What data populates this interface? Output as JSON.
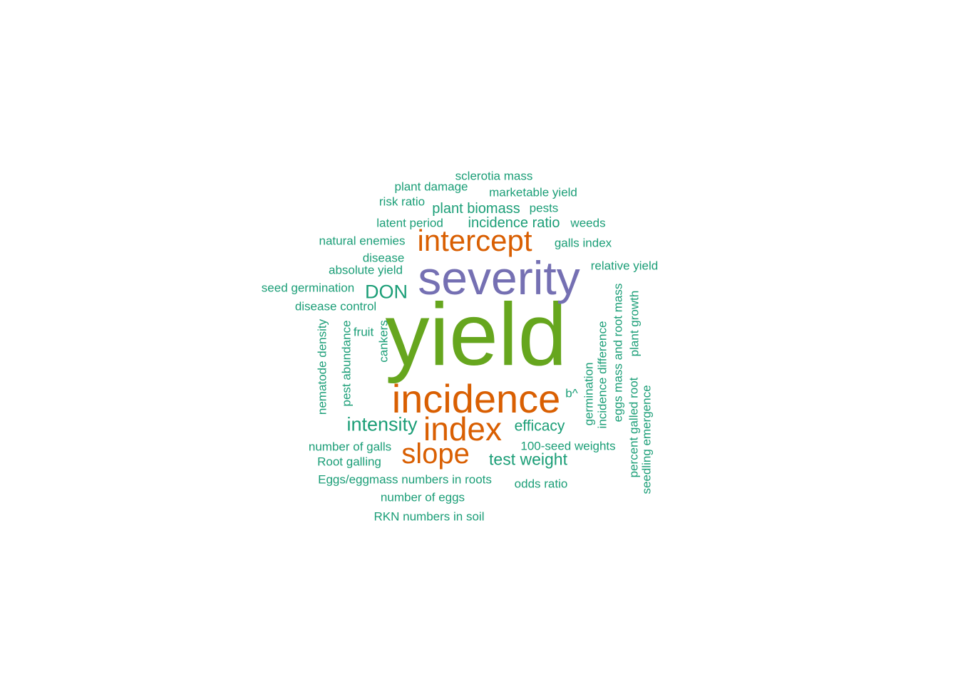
{
  "colors": {
    "small": "#1b9e77",
    "medium": "#d95f02",
    "severity": "#7570b3",
    "largest": "#66a61e"
  },
  "words": {
    "yield": "yield",
    "severity": "severity",
    "incidence": "incidence",
    "intercept": "intercept",
    "index": "index",
    "slope": "slope",
    "don": "DON",
    "intensity": "intensity",
    "test_weight": "test weight",
    "efficacy": "efficacy",
    "plant_biomass": "plant biomass",
    "incidence_ratio": "incidence ratio",
    "sclerotia_mass": "sclerotia mass",
    "plant_damage": "plant damage",
    "marketable_yield": "marketable yield",
    "risk_ratio": "risk ratio",
    "pests": "pests",
    "latent_period": "latent period",
    "weeds": "weeds",
    "natural_enemies": "natural enemies",
    "galls_index": "galls index",
    "disease": "disease",
    "relative_yield": "relative yield",
    "absolute_yield": "absolute yield",
    "seed_germination": "seed germination",
    "disease_control": "disease control",
    "fruit": "fruit",
    "b_hat": "b^",
    "number_of_galls": "number of galls",
    "hundred_seed_weights": "100-seed weights",
    "root_galling": "Root galling",
    "eggs_eggmass": "Eggs/eggmass numbers in roots",
    "odds_ratio": "odds ratio",
    "number_of_eggs": "number of eggs",
    "rkn_numbers": "RKN numbers in soil",
    "nematode_density": "nematode density",
    "pest_abundance": "pest abundance",
    "cankers": "cankers",
    "germination": "germination",
    "incidence_difference": "incidence difference",
    "eggs_mass_root_mass": "eggs mass and root mass",
    "plant_growth": "plant growth",
    "percent_galled_root": "percent galled root",
    "seedling_emergence": "seedling emergence"
  }
}
